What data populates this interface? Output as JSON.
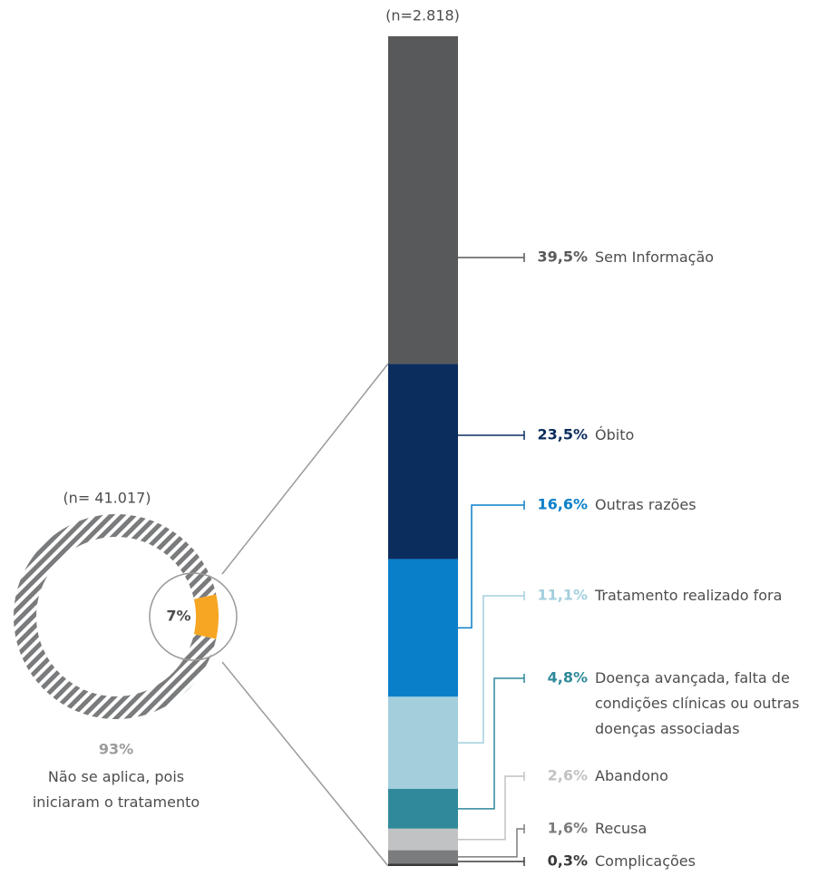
{
  "chart_data": [
    {
      "type": "donut",
      "subtitle": "(n= 41.017)",
      "categories": [
        "Não se aplica, pois iniciaram o tratamento",
        null
      ],
      "values": [
        93,
        7
      ],
      "value_labels": [
        "93%",
        "7%"
      ],
      "colors": [
        "#7a7b7d",
        "#f6a623"
      ]
    },
    {
      "type": "stacked-bar",
      "subtitle": "(n=2.818)",
      "categories": [
        "Sem Informação",
        "Óbito",
        "Outras razões",
        "Tratamento realizado fora",
        "Doença avançada, falta de condições clínicas ou outras doenças associadas",
        "Abandono",
        "Recusa",
        "Complicações"
      ],
      "values": [
        39.5,
        23.5,
        16.6,
        11.1,
        4.8,
        2.6,
        1.6,
        0.3
      ],
      "value_labels": [
        "39,5%",
        "23,5%",
        "16,6%",
        "11,1%",
        "4,8%",
        "2,6%",
        "1,6%",
        "0,3%"
      ],
      "colors": [
        "#58595b",
        "#0b2d5e",
        "#0a7fc9",
        "#a3cfdd",
        "#2f899a",
        "#c1c2c3",
        "#7b7c7e",
        "#3a3a3c"
      ]
    }
  ]
}
